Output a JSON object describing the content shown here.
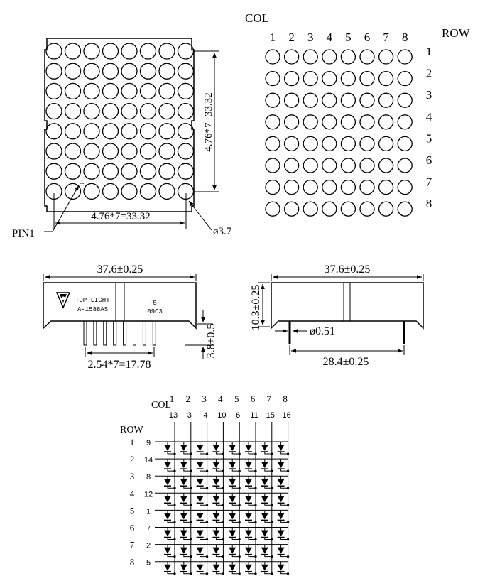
{
  "front_view": {
    "dim_horizontal": "4.76*7=33.32",
    "dim_vertical": "4.76*7=33.32",
    "pin1_label": "PIN1",
    "dot_diameter": "ø3.7",
    "grid_rows": 8,
    "grid_cols": 8
  },
  "dot_map": {
    "col_title": "COL",
    "row_title": "ROW",
    "col_labels": [
      "1",
      "2",
      "3",
      "4",
      "5",
      "6",
      "7",
      "8"
    ],
    "row_labels": [
      "1",
      "2",
      "3",
      "4",
      "5",
      "6",
      "7",
      "8"
    ]
  },
  "side_view": {
    "width_dim": "37.6±0.25",
    "brand_line1": "TOP LIGHT",
    "brand_line2": "A-1588AS",
    "code_line1": "-S-",
    "code_line2": "09C3",
    "pin_height_dim": "3.8±0.5",
    "pitch_dim": "2.54*7=17.78"
  },
  "end_view": {
    "width_dim": "37.6±0.25",
    "height_dim": "10.3±0.25",
    "pin_dia_dim": "ø0.51",
    "pin_span_dim": "28.4±0.25"
  },
  "schematic": {
    "col_title": "COL",
    "row_title": "ROW",
    "col_labels": [
      "1",
      "2",
      "3",
      "4",
      "5",
      "6",
      "7",
      "8"
    ],
    "col_pins": [
      "13",
      "3",
      "4",
      "10",
      "6",
      "11",
      "15",
      "16"
    ],
    "row_labels": [
      "1",
      "2",
      "3",
      "4",
      "5",
      "6",
      "7",
      "8"
    ],
    "row_pins": [
      "9",
      "14",
      "8",
      "12",
      "1",
      "7",
      "2",
      "5"
    ]
  }
}
